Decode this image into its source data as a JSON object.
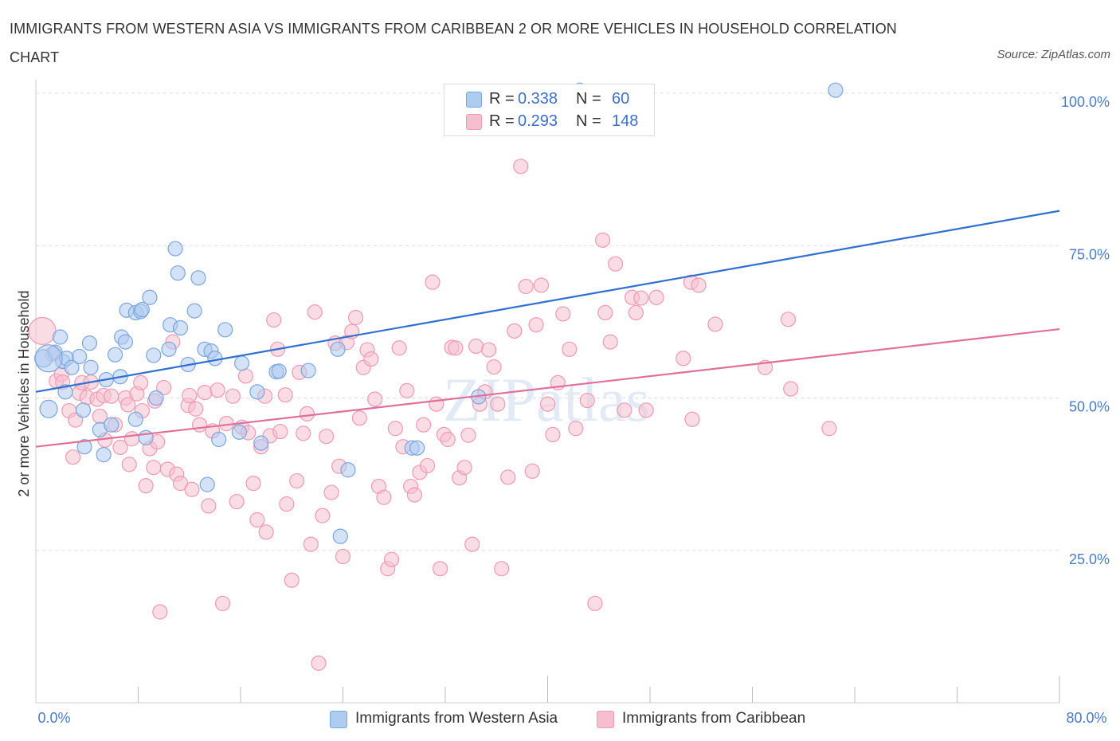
{
  "title": "IMMIGRANTS FROM WESTERN ASIA VS IMMIGRANTS FROM CARIBBEAN 2 OR MORE VEHICLES IN HOUSEHOLD CORRELATION CHART",
  "source": "Source: ZipAtlas.com",
  "watermark": "ZIPatlas",
  "legend": {
    "rows": [
      {
        "r_label": "R =",
        "r_value": "0.338",
        "n_label": "N =",
        "n_value": "60"
      },
      {
        "r_label": "R =",
        "r_value": "0.293",
        "n_label": "N =",
        "n_value": "148"
      }
    ]
  },
  "colors": {
    "blue_fill": "#aecbf0",
    "blue_stroke": "#7aa6de",
    "blue_line": "#2f6fcf",
    "pink_fill": "#f6bfcf",
    "pink_stroke": "#ef9ab2",
    "pink_line": "#e0709a",
    "tick_label": "#4a7bc8",
    "grid": "#dddddd"
  },
  "chart_data": {
    "type": "scatter",
    "xlabel": "",
    "ylabel": "2 or more Vehicles in Household",
    "xlim": [
      0,
      80
    ],
    "ylim": [
      0,
      105
    ],
    "x_tick_labels": [
      "0.0%",
      "80.0%"
    ],
    "y_ticks": [
      25,
      50,
      75,
      100
    ],
    "y_tick_labels": [
      "25.0%",
      "50.0%",
      "75.0%",
      "100.0%"
    ],
    "grid": true,
    "legend_position": "bottom-center",
    "series": [
      {
        "name": "Immigrants from Western Asia",
        "color": "#aecbf0",
        "trend": [
          [
            0,
            51.0
          ],
          [
            80,
            80.7
          ]
        ],
        "points": [
          [
            0.6,
            56.5
          ],
          [
            1.0,
            48.2
          ],
          [
            1.5,
            57.5
          ],
          [
            1.9,
            60.0
          ],
          [
            2.1,
            56.0
          ],
          [
            2.3,
            51.0
          ],
          [
            2.4,
            56.5
          ],
          [
            2.8,
            55.0
          ],
          [
            3.4,
            56.8
          ],
          [
            3.7,
            48.0
          ],
          [
            3.8,
            42.0
          ],
          [
            4.2,
            59.0
          ],
          [
            4.3,
            55.0
          ],
          [
            5.0,
            44.8
          ],
          [
            5.3,
            40.7
          ],
          [
            5.5,
            53.0
          ],
          [
            5.9,
            45.6
          ],
          [
            6.2,
            57.1
          ],
          [
            6.6,
            53.5
          ],
          [
            6.7,
            60.0
          ],
          [
            7.0,
            59.2
          ],
          [
            7.1,
            64.4
          ],
          [
            7.8,
            46.5
          ],
          [
            7.8,
            64.0
          ],
          [
            8.2,
            64.2
          ],
          [
            8.3,
            64.5
          ],
          [
            8.6,
            43.5
          ],
          [
            8.9,
            66.5
          ],
          [
            9.2,
            57.0
          ],
          [
            9.4,
            50.0
          ],
          [
            10.4,
            58.0
          ],
          [
            10.5,
            62.0
          ],
          [
            10.9,
            74.5
          ],
          [
            11.1,
            70.5
          ],
          [
            11.3,
            61.5
          ],
          [
            11.9,
            55.5
          ],
          [
            12.4,
            64.3
          ],
          [
            12.7,
            69.7
          ],
          [
            13.2,
            58.0
          ],
          [
            13.4,
            35.8
          ],
          [
            13.7,
            57.7
          ],
          [
            14.0,
            56.5
          ],
          [
            14.3,
            43.2
          ],
          [
            14.8,
            61.2
          ],
          [
            15.9,
            44.4
          ],
          [
            16.1,
            55.7
          ],
          [
            17.3,
            51.0
          ],
          [
            17.6,
            42.6
          ],
          [
            18.8,
            54.3
          ],
          [
            19.0,
            54.4
          ],
          [
            21.3,
            54.5
          ],
          [
            23.6,
            58.0
          ],
          [
            23.8,
            27.3
          ],
          [
            24.4,
            38.2
          ],
          [
            29.4,
            41.8
          ],
          [
            29.8,
            41.8
          ],
          [
            34.6,
            50.2
          ],
          [
            42.5,
            100.5
          ],
          [
            62.5,
            100.5
          ],
          [
            1.0,
            56.5
          ]
        ]
      },
      {
        "name": "Immigrants from Caribbean",
        "color": "#f6bfcf",
        "trend": [
          [
            0,
            42.0
          ],
          [
            80,
            61.3
          ]
        ],
        "points": [
          [
            0.5,
            61.0
          ],
          [
            1.3,
            57.2
          ],
          [
            1.6,
            52.8
          ],
          [
            2.0,
            53.9
          ],
          [
            2.1,
            52.6
          ],
          [
            2.6,
            47.9
          ],
          [
            2.9,
            40.3
          ],
          [
            3.1,
            46.4
          ],
          [
            3.4,
            50.8
          ],
          [
            3.6,
            52.5
          ],
          [
            4.0,
            50.1
          ],
          [
            4.3,
            52.6
          ],
          [
            4.8,
            49.8
          ],
          [
            5.0,
            47.0
          ],
          [
            5.3,
            50.4
          ],
          [
            5.4,
            43.1
          ],
          [
            5.9,
            50.3
          ],
          [
            6.2,
            45.6
          ],
          [
            6.6,
            41.9
          ],
          [
            7.0,
            50.0
          ],
          [
            7.2,
            48.9
          ],
          [
            7.3,
            39.1
          ],
          [
            7.5,
            43.3
          ],
          [
            7.9,
            50.7
          ],
          [
            8.2,
            52.5
          ],
          [
            8.3,
            47.9
          ],
          [
            8.6,
            35.6
          ],
          [
            8.9,
            41.7
          ],
          [
            9.2,
            38.6
          ],
          [
            9.3,
            49.5
          ],
          [
            9.5,
            42.8
          ],
          [
            9.7,
            14.9
          ],
          [
            10.0,
            51.7
          ],
          [
            10.3,
            38.3
          ],
          [
            10.7,
            59.2
          ],
          [
            11.0,
            37.5
          ],
          [
            11.3,
            36.0
          ],
          [
            11.9,
            48.8
          ],
          [
            12.0,
            50.4
          ],
          [
            12.2,
            35.0
          ],
          [
            12.5,
            48.2
          ],
          [
            12.8,
            45.6
          ],
          [
            13.2,
            50.9
          ],
          [
            13.5,
            32.3
          ],
          [
            13.8,
            44.6
          ],
          [
            14.2,
            51.3
          ],
          [
            14.6,
            16.3
          ],
          [
            14.9,
            45.8
          ],
          [
            15.4,
            50.3
          ],
          [
            15.7,
            33.0
          ],
          [
            16.1,
            45.2
          ],
          [
            16.4,
            53.6
          ],
          [
            16.6,
            44.3
          ],
          [
            17.0,
            36.0
          ],
          [
            17.3,
            30.0
          ],
          [
            17.6,
            42.0
          ],
          [
            17.9,
            50.3
          ],
          [
            18.0,
            28.0
          ],
          [
            18.3,
            43.8
          ],
          [
            18.6,
            62.8
          ],
          [
            18.9,
            58.0
          ],
          [
            19.1,
            44.5
          ],
          [
            19.5,
            50.5
          ],
          [
            19.6,
            32.6
          ],
          [
            20.0,
            20.1
          ],
          [
            20.4,
            36.4
          ],
          [
            20.6,
            54.2
          ],
          [
            20.9,
            44.2
          ],
          [
            21.2,
            47.4
          ],
          [
            21.5,
            26.0
          ],
          [
            21.8,
            64.1
          ],
          [
            22.1,
            6.5
          ],
          [
            22.4,
            30.7
          ],
          [
            22.7,
            43.7
          ],
          [
            23.1,
            34.5
          ],
          [
            23.4,
            59.0
          ],
          [
            23.7,
            38.8
          ],
          [
            24.0,
            24.0
          ],
          [
            24.3,
            59.1
          ],
          [
            24.7,
            60.9
          ],
          [
            25.0,
            63.2
          ],
          [
            25.3,
            46.7
          ],
          [
            25.6,
            55.0
          ],
          [
            25.9,
            57.9
          ],
          [
            26.2,
            56.4
          ],
          [
            26.5,
            49.8
          ],
          [
            26.8,
            35.5
          ],
          [
            27.2,
            33.7
          ],
          [
            27.5,
            22.0
          ],
          [
            27.8,
            23.5
          ],
          [
            28.1,
            45.0
          ],
          [
            28.4,
            58.2
          ],
          [
            28.7,
            42.0
          ],
          [
            29.0,
            51.2
          ],
          [
            29.3,
            35.5
          ],
          [
            29.6,
            34.1
          ],
          [
            30.0,
            37.8
          ],
          [
            30.3,
            45.6
          ],
          [
            30.6,
            38.9
          ],
          [
            31.0,
            69.0
          ],
          [
            31.3,
            49.0
          ],
          [
            31.6,
            22.0
          ],
          [
            31.9,
            44.0
          ],
          [
            32.2,
            43.2
          ],
          [
            32.5,
            58.3
          ],
          [
            32.8,
            58.2
          ],
          [
            33.1,
            36.9
          ],
          [
            33.5,
            38.6
          ],
          [
            33.8,
            43.9
          ],
          [
            34.1,
            26.0
          ],
          [
            34.4,
            58.5
          ],
          [
            34.7,
            49.0
          ],
          [
            35.1,
            51.0
          ],
          [
            35.4,
            57.9
          ],
          [
            35.8,
            55.1
          ],
          [
            36.1,
            49.0
          ],
          [
            36.4,
            22.0
          ],
          [
            36.9,
            37.0
          ],
          [
            37.4,
            61.0
          ],
          [
            37.9,
            88.0
          ],
          [
            38.3,
            68.3
          ],
          [
            38.8,
            38.0
          ],
          [
            39.1,
            62.0
          ],
          [
            39.5,
            68.5
          ],
          [
            40.0,
            49.0
          ],
          [
            40.4,
            44.0
          ],
          [
            40.8,
            52.5
          ],
          [
            41.2,
            63.8
          ],
          [
            41.7,
            58.0
          ],
          [
            42.2,
            45.0
          ],
          [
            43.1,
            49.6
          ],
          [
            43.7,
            16.3
          ],
          [
            44.3,
            75.9
          ],
          [
            44.5,
            64.0
          ],
          [
            44.9,
            59.2
          ],
          [
            45.3,
            72.0
          ],
          [
            46.0,
            48.0
          ],
          [
            46.6,
            66.5
          ],
          [
            46.9,
            64.0
          ],
          [
            47.3,
            66.4
          ],
          [
            47.7,
            48.0
          ],
          [
            48.5,
            66.5
          ],
          [
            50.6,
            56.5
          ],
          [
            51.2,
            69.0
          ],
          [
            51.3,
            46.5
          ],
          [
            51.8,
            68.5
          ],
          [
            53.1,
            62.1
          ],
          [
            57.0,
            55.0
          ],
          [
            58.8,
            62.9
          ],
          [
            59.0,
            51.5
          ],
          [
            62.0,
            45.0
          ]
        ]
      }
    ]
  }
}
